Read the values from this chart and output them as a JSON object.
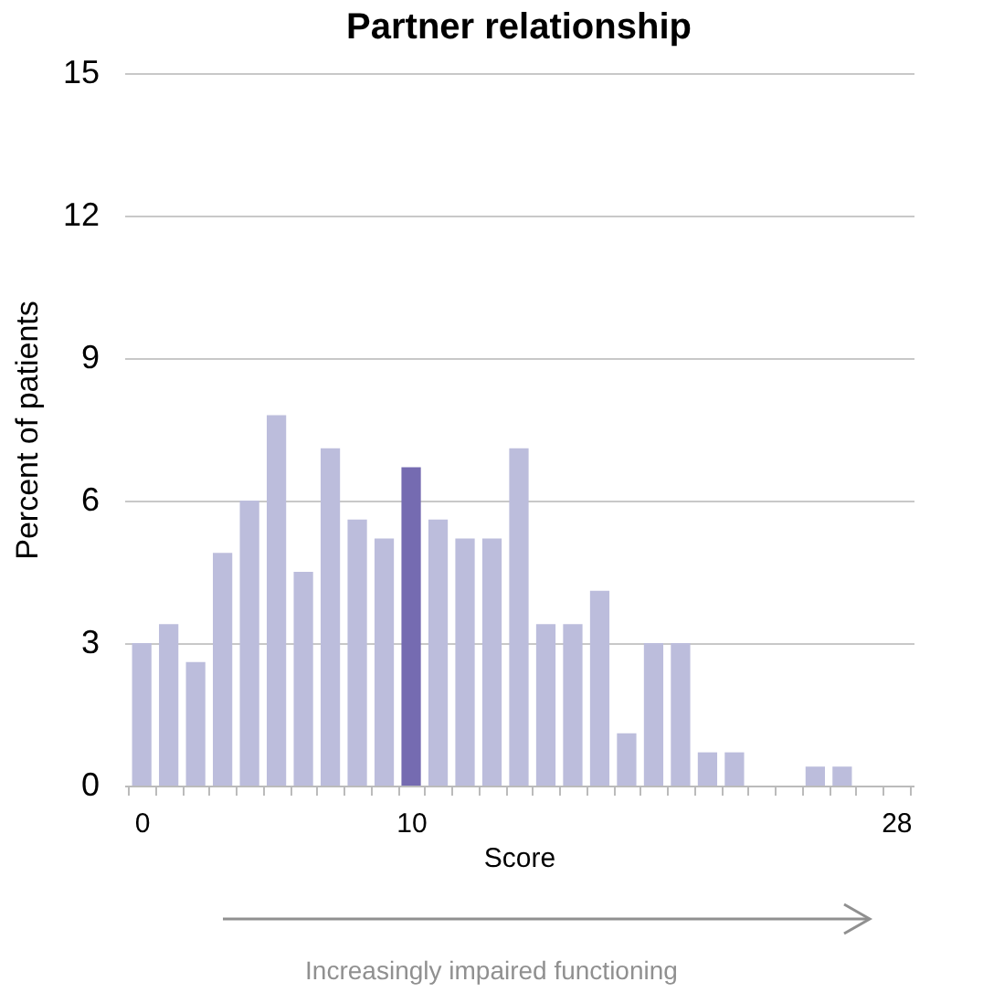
{
  "chart_data": {
    "type": "bar",
    "title": "Partner relationship",
    "xlabel": "Score",
    "ylabel": "Percent of patients",
    "categories": [
      "0",
      null,
      null,
      null,
      null,
      null,
      null,
      null,
      null,
      null,
      "10",
      null,
      null,
      null,
      null,
      null,
      null,
      null,
      null,
      null,
      null,
      null,
      null,
      null,
      null,
      null,
      null,
      null,
      "28"
    ],
    "values": [
      3.0,
      3.4,
      2.6,
      4.9,
      6.0,
      7.8,
      4.5,
      7.1,
      5.6,
      5.2,
      6.7,
      5.6,
      5.2,
      5.2,
      7.1,
      3.4,
      3.4,
      4.1,
      1.1,
      3.0,
      3.0,
      0.7,
      0.7,
      0,
      0,
      0.4,
      0.4,
      0,
      0
    ],
    "colors": [
      "#bcbddc",
      "#bcbddc",
      "#bcbddc",
      "#bcbddc",
      "#bcbddc",
      "#bcbddc",
      "#bcbddc",
      "#bcbddc",
      "#bcbddc",
      "#bcbddc",
      "#756bb1",
      "#bcbddc",
      "#bcbddc",
      "#bcbddc",
      "#bcbddc",
      "#bcbddc",
      "#bcbddc",
      "#bcbddc",
      "#bcbddc",
      "#bcbddc",
      "#bcbddc",
      "#bcbddc",
      "#bcbddc",
      "#bcbddc",
      "#bcbddc",
      "#bcbddc",
      "#bcbddc",
      "#bcbddc",
      "#bcbddc"
    ],
    "ylim": [
      0,
      15
    ],
    "yticks": [
      0,
      3,
      6,
      9,
      12,
      15
    ],
    "grid": "y",
    "annotations": [
      "Increasingly impaired functioning"
    ]
  }
}
